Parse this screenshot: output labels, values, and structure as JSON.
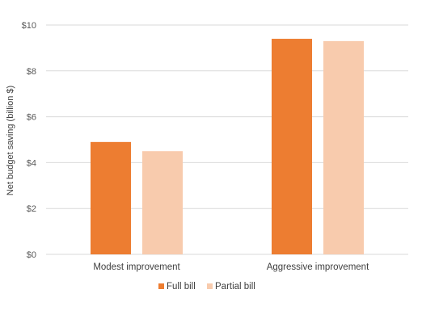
{
  "chart_data": {
    "type": "bar",
    "categories": [
      "Modest improvement",
      "Aggressive improvement"
    ],
    "series": [
      {
        "name": "Full bill",
        "values": [
          4.9,
          9.4
        ],
        "color": "#ed7d31"
      },
      {
        "name": "Partial bill",
        "values": [
          4.5,
          9.3
        ],
        "color": "#f8cbad"
      }
    ],
    "ylabel": "Net budget saving (billion $)",
    "xlabel": "",
    "ylim": [
      0,
      10
    ],
    "yticks": [
      0,
      2,
      4,
      6,
      8,
      10
    ],
    "ytick_labels": [
      "$0",
      "$2",
      "$4",
      "$6",
      "$8",
      "$10"
    ],
    "grid": true,
    "legend_position": "bottom"
  }
}
